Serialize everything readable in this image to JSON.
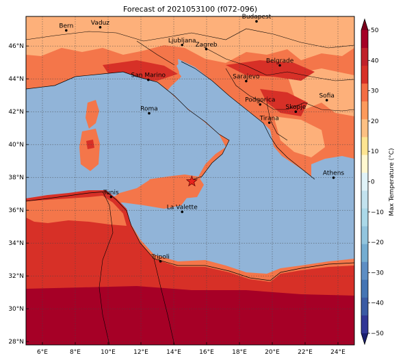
{
  "title": "Forecast of 2021053100 (f072-096)",
  "map": {
    "lon_range": [
      5,
      25
    ],
    "lat_range": [
      27.8,
      47.8
    ],
    "lon_ticks": [
      "6°E",
      "8°E",
      "10°E",
      "12°E",
      "14°E",
      "16°E",
      "18°E",
      "20°E",
      "22°E",
      "24°E"
    ],
    "lon_tick_values": [
      6,
      8,
      10,
      12,
      14,
      16,
      18,
      20,
      22,
      24
    ],
    "lat_ticks": [
      "28°N",
      "30°N",
      "32°N",
      "34°N",
      "36°N",
      "38°N",
      "40°N",
      "42°N",
      "44°N",
      "46°N"
    ],
    "lat_tick_values": [
      28,
      30,
      32,
      34,
      36,
      38,
      40,
      42,
      44,
      46
    ],
    "grid": true,
    "marker": {
      "type": "star",
      "lon": 15.1,
      "lat": 37.75,
      "color": "#e8231c"
    }
  },
  "cities": [
    {
      "name": "Bern",
      "lon": 7.45,
      "lat": 46.95
    },
    {
      "name": "Vaduz",
      "lon": 9.52,
      "lat": 47.14
    },
    {
      "name": "Budapest",
      "lon": 19.04,
      "lat": 47.5
    },
    {
      "name": "Ljubljana",
      "lon": 14.51,
      "lat": 46.06
    },
    {
      "name": "Zagreb",
      "lon": 15.98,
      "lat": 45.81
    },
    {
      "name": "Belgrade",
      "lon": 20.46,
      "lat": 44.82
    },
    {
      "name": "San Marino",
      "lon": 12.45,
      "lat": 43.94
    },
    {
      "name": "Sarajevo",
      "lon": 18.41,
      "lat": 43.86
    },
    {
      "name": "Sofia",
      "lon": 23.32,
      "lat": 42.7
    },
    {
      "name": "Podgorica",
      "lon": 19.26,
      "lat": 42.44
    },
    {
      "name": "Skopje",
      "lon": 21.43,
      "lat": 42.0
    },
    {
      "name": "Roma",
      "lon": 12.5,
      "lat": 41.9
    },
    {
      "name": "Tirana",
      "lon": 19.82,
      "lat": 41.33
    },
    {
      "name": "Athens",
      "lon": 23.73,
      "lat": 37.98
    },
    {
      "name": "Tunis",
      "lon": 10.18,
      "lat": 36.81
    },
    {
      "name": "La Valette",
      "lon": 14.51,
      "lat": 35.9
    },
    {
      "name": "Tripoli",
      "lon": 13.19,
      "lat": 32.89
    }
  ],
  "colorbar": {
    "label": "Max Temperature (°C)",
    "tick_labels": [
      "50",
      "40",
      "30",
      "20",
      "10",
      "0",
      "−10",
      "−20",
      "−30",
      "−40",
      "−50"
    ],
    "tick_values": [
      50,
      40,
      30,
      20,
      10,
      0,
      -10,
      -20,
      -30,
      -40,
      -50
    ],
    "bands_top_to_bottom": [
      "#a50026",
      "#c0212a",
      "#d73027",
      "#f46d43",
      "#fc9a5c",
      "#fdc083",
      "#fee591",
      "#fff8d0",
      "#e0f3f8",
      "#c2e2ee",
      "#abd9e9",
      "#92c5de",
      "#74add1",
      "#5d8ec4",
      "#4575b4",
      "#3a5ba4",
      "#313695"
    ],
    "over_color": "#7a001c",
    "under_color": "#1a1f6e"
  },
  "colors": {
    "sea": "#91b4d8",
    "t20_25": "#fdb07a",
    "t25_30": "#f4764a",
    "t30_35": "#d73027",
    "t35_40": "#a60026"
  }
}
